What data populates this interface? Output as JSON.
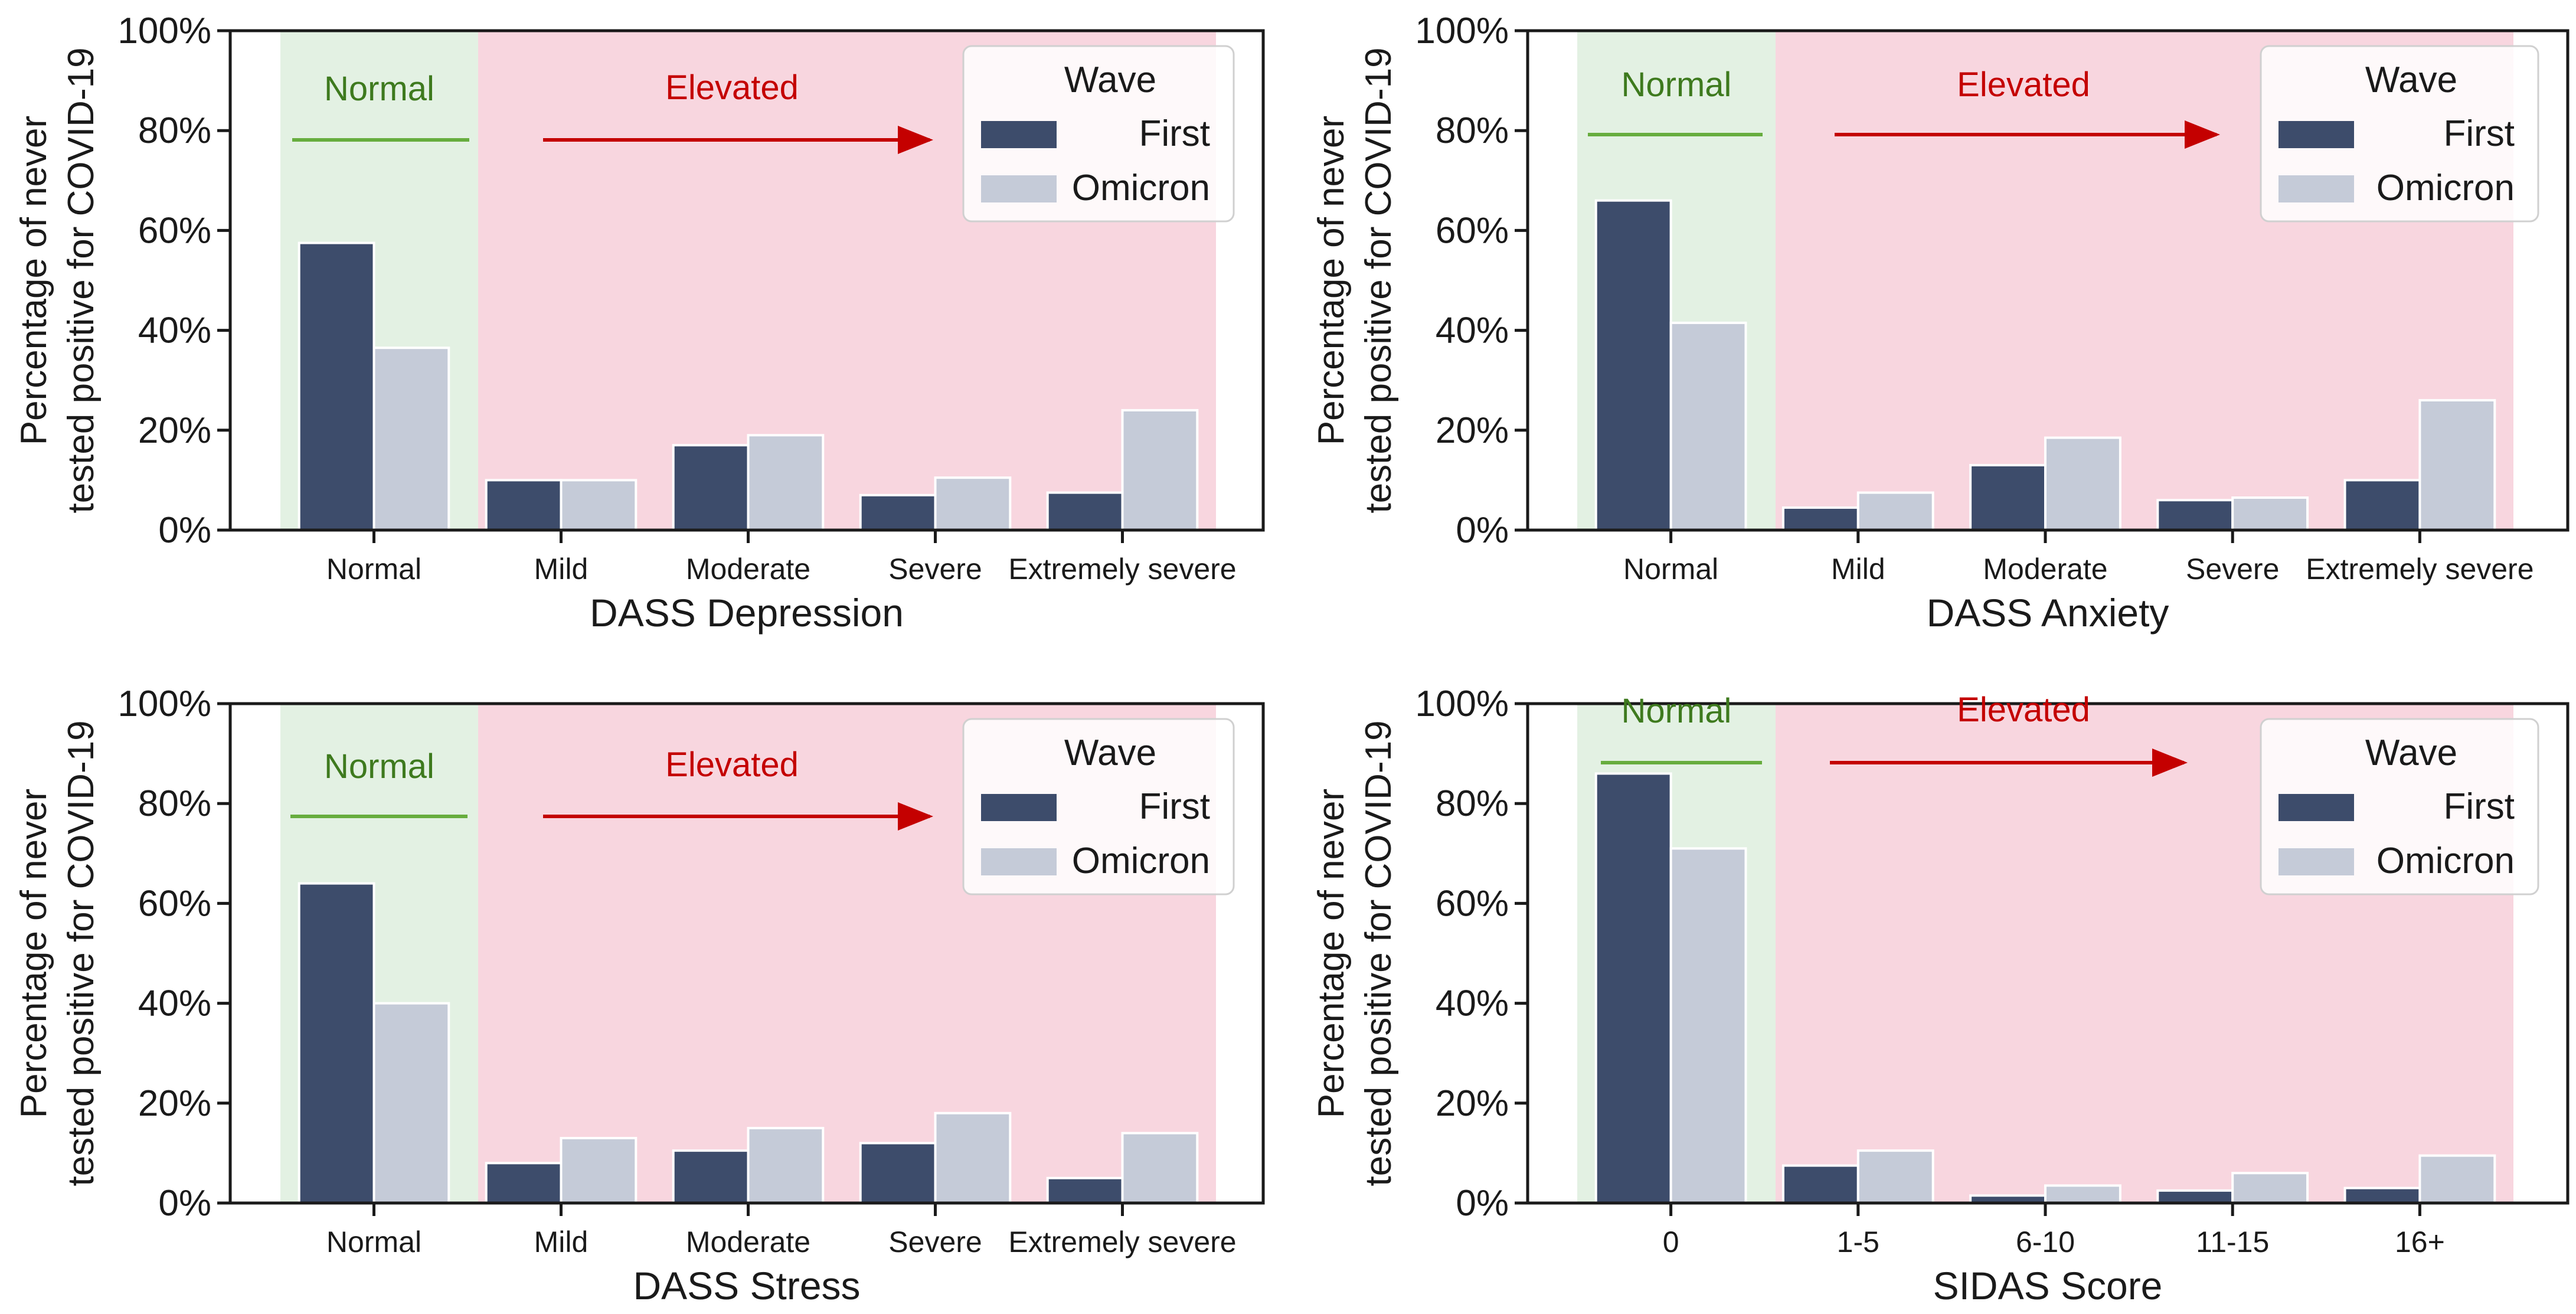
{
  "colors": {
    "first": "#3d4c6b",
    "omicron": "#c5cbd8",
    "normal_bg": "#e3f1e3",
    "elevated_bg": "#f8d6df",
    "normal_text": "#3e7a1e",
    "normal_line": "#67ad3e",
    "elevated": "#c40000"
  },
  "chart_data": [
    {
      "type": "bar",
      "xlabel": "DASS Depression",
      "ylabel_line1": "Percentage of never",
      "ylabel_line2": "tested positive for COVID-19",
      "categories": [
        "Normal",
        "Mild",
        "Moderate",
        "Severe",
        "Extremely severe"
      ],
      "series": [
        {
          "name": "First",
          "values": [
            57.5,
            10,
            17,
            7,
            7.5
          ]
        },
        {
          "name": "Omicron",
          "values": [
            36.5,
            10,
            19,
            10.5,
            24
          ]
        }
      ],
      "ylim": [
        0,
        100
      ],
      "yticks": [
        "0%",
        "20%",
        "40%",
        "60%",
        "80%",
        "100%"
      ],
      "legend_title": "Wave",
      "legend_position": "top-right",
      "regions": {
        "normal": "Normal",
        "elevated": "Elevated"
      }
    },
    {
      "type": "bar",
      "xlabel": "DASS Anxiety",
      "ylabel_line1": "Percentage of never",
      "ylabel_line2": "tested positive for COVID-19",
      "categories": [
        "Normal",
        "Mild",
        "Moderate",
        "Severe",
        "Extremely severe"
      ],
      "series": [
        {
          "name": "First",
          "values": [
            66,
            4.5,
            13,
            6,
            10
          ]
        },
        {
          "name": "Omicron",
          "values": [
            41.5,
            7.5,
            18.5,
            6.5,
            26
          ]
        }
      ],
      "ylim": [
        0,
        100
      ],
      "yticks": [
        "0%",
        "20%",
        "40%",
        "60%",
        "80%",
        "100%"
      ],
      "legend_title": "Wave",
      "legend_position": "top-right",
      "regions": {
        "normal": "Normal",
        "elevated": "Elevated"
      }
    },
    {
      "type": "bar",
      "xlabel": "DASS Stress",
      "ylabel_line1": "Percentage of never",
      "ylabel_line2": "tested positive for COVID-19",
      "categories": [
        "Normal",
        "Mild",
        "Moderate",
        "Severe",
        "Extremely severe"
      ],
      "series": [
        {
          "name": "First",
          "values": [
            64,
            8,
            10.5,
            12,
            5
          ]
        },
        {
          "name": "Omicron",
          "values": [
            40,
            13,
            15,
            18,
            14
          ]
        }
      ],
      "ylim": [
        0,
        100
      ],
      "yticks": [
        "0%",
        "20%",
        "40%",
        "60%",
        "80%",
        "100%"
      ],
      "legend_title": "Wave",
      "legend_position": "top-right",
      "regions": {
        "normal": "Normal",
        "elevated": "Elevated"
      }
    },
    {
      "type": "bar",
      "xlabel": "SIDAS Score",
      "ylabel_line1": "Percentage of never",
      "ylabel_line2": "tested positive for COVID-19",
      "categories": [
        "0",
        "1-5",
        "6-10",
        "11-15",
        "16+"
      ],
      "series": [
        {
          "name": "First",
          "values": [
            86,
            7.5,
            1.5,
            2.5,
            3
          ]
        },
        {
          "name": "Omicron",
          "values": [
            71,
            10.5,
            3.5,
            6,
            9.5
          ]
        }
      ],
      "ylim": [
        0,
        100
      ],
      "yticks": [
        "0%",
        "20%",
        "40%",
        "60%",
        "80%",
        "100%"
      ],
      "legend_title": "Wave",
      "legend_position": "top-right",
      "regions": {
        "normal": "Normal",
        "elevated": "Elevated"
      }
    }
  ]
}
